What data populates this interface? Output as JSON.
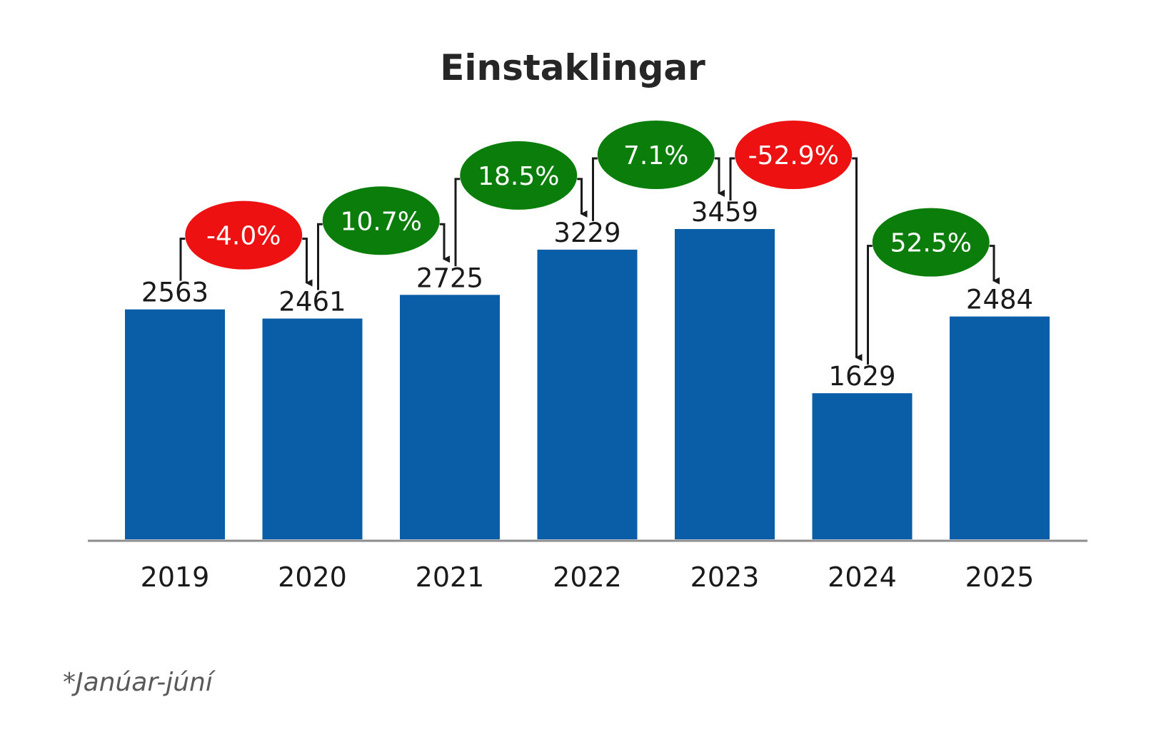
{
  "chart_data": {
    "type": "bar",
    "title": "Einstaklingar",
    "categories": [
      "2019",
      "2020",
      "2021",
      "2022",
      "2023",
      "2024",
      "2025"
    ],
    "values": [
      2563,
      2461,
      2725,
      3229,
      3459,
      1629,
      2484
    ],
    "changes": [
      {
        "from": "2019",
        "to": "2020",
        "label": "-4.0%",
        "direction": "down"
      },
      {
        "from": "2020",
        "to": "2021",
        "label": "10.7%",
        "direction": "up"
      },
      {
        "from": "2021",
        "to": "2022",
        "label": "18.5%",
        "direction": "up"
      },
      {
        "from": "2022",
        "to": "2023",
        "label": "7.1%",
        "direction": "up"
      },
      {
        "from": "2023",
        "to": "2024",
        "label": "-52.9%",
        "direction": "down"
      },
      {
        "from": "2024",
        "to": "2025",
        "label": "52.5%",
        "direction": "up"
      }
    ],
    "footnote": "*Janúar-júní",
    "ylim": [
      0,
      3459
    ],
    "grid": false,
    "legend": "none",
    "colors": {
      "bar": "#0a5ea8",
      "increase": "#0b7d0b",
      "decrease": "#ee1111",
      "axis": "#8c8c8c",
      "connector": "#1a1a1a"
    }
  }
}
